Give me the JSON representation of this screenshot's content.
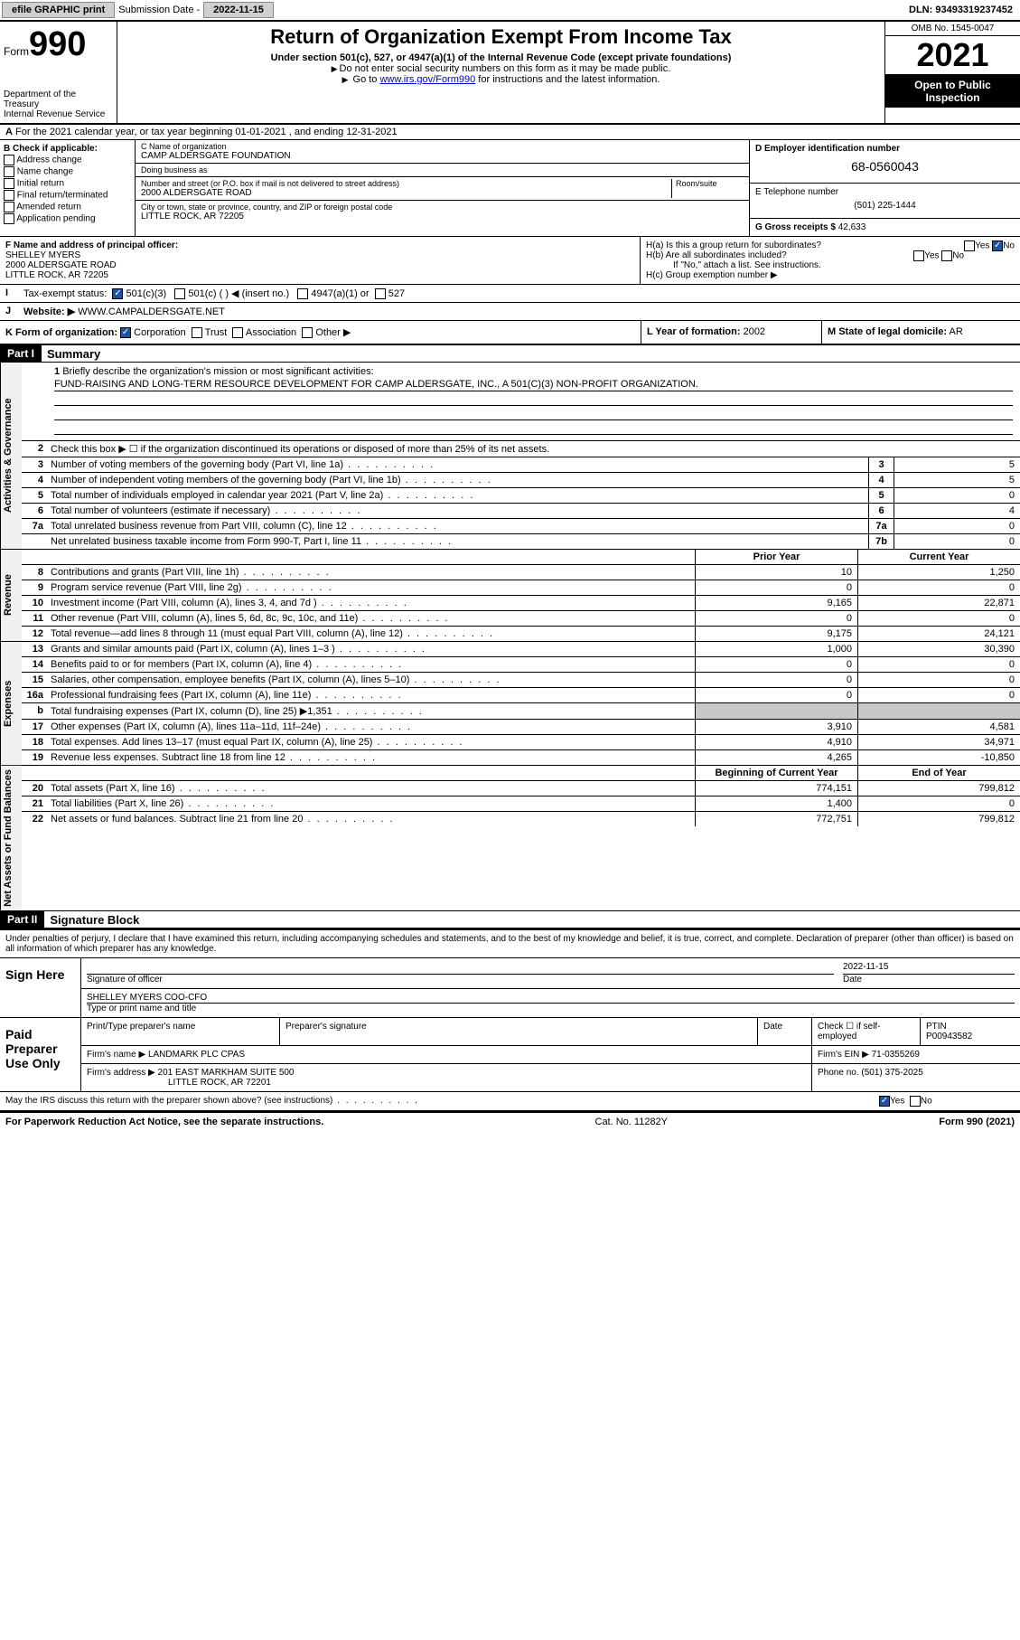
{
  "topbar": {
    "efile": "efile GRAPHIC print",
    "submission_label": "Submission Date -",
    "submission_date": "2022-11-15",
    "dln_label": "DLN:",
    "dln": "93493319237452"
  },
  "header": {
    "form_prefix": "Form",
    "form_number": "990",
    "dept1": "Department of the Treasury",
    "dept2": "Internal Revenue Service",
    "title": "Return of Organization Exempt From Income Tax",
    "subtitle": "Under section 501(c), 527, or 4947(a)(1) of the Internal Revenue Code (except private foundations)",
    "note1": "Do not enter social security numbers on this form as it may be made public.",
    "note2_pre": "Go to ",
    "note2_link": "www.irs.gov/Form990",
    "note2_post": " for instructions and the latest information.",
    "omb": "OMB No. 1545-0047",
    "year": "2021",
    "open": "Open to Public Inspection"
  },
  "rowA": {
    "text": "For the 2021 calendar year, or tax year beginning 01-01-2021   , and ending 12-31-2021"
  },
  "sectionB": {
    "title": "B Check if applicable:",
    "opts": [
      "Address change",
      "Name change",
      "Initial return",
      "Final return/terminated",
      "Amended return",
      "Application pending"
    ]
  },
  "sectionC": {
    "name_label": "C Name of organization",
    "name": "CAMP ALDERSGATE FOUNDATION",
    "dba_label": "Doing business as",
    "dba": "",
    "addr_label": "Number and street (or P.O. box if mail is not delivered to street address)",
    "room_label": "Room/suite",
    "addr": "2000 ALDERSGATE ROAD",
    "city_label": "City or town, state or province, country, and ZIP or foreign postal code",
    "city": "LITTLE ROCK, AR  72205"
  },
  "sectionD": {
    "label": "D Employer identification number",
    "ein": "68-0560043"
  },
  "sectionE": {
    "label": "E Telephone number",
    "phone": "(501) 225-1444"
  },
  "sectionG": {
    "label": "G Gross receipts $",
    "amount": "42,633"
  },
  "sectionF": {
    "label": "F Name and address of principal officer:",
    "name": "SHELLEY MYERS",
    "addr1": "2000 ALDERSGATE ROAD",
    "addr2": "LITTLE ROCK, AR  72205"
  },
  "sectionH": {
    "ha": "H(a)  Is this a group return for subordinates?",
    "ha_yes": "Yes",
    "ha_no": "No",
    "hb": "H(b)  Are all subordinates included?",
    "hb_note": "If \"No,\" attach a list. See instructions.",
    "hc": "H(c)  Group exemption number ▶"
  },
  "sectionI": {
    "label": "Tax-exempt status:",
    "o1": "501(c)(3)",
    "o2": "501(c) (  ) ◀ (insert no.)",
    "o3": "4947(a)(1) or",
    "o4": "527"
  },
  "sectionJ": {
    "label": "Website: ▶",
    "value": "WWW.CAMPALDERSGATE.NET"
  },
  "sectionK": {
    "label": "K Form of organization:",
    "o1": "Corporation",
    "o2": "Trust",
    "o3": "Association",
    "o4": "Other ▶"
  },
  "sectionL": {
    "label": "L Year of formation:",
    "value": "2002"
  },
  "sectionM": {
    "label": "M State of legal domicile:",
    "value": "AR"
  },
  "part1": {
    "hdr": "Part I",
    "title": "Summary",
    "vtab_gov": "Activities & Governance",
    "vtab_rev": "Revenue",
    "vtab_exp": "Expenses",
    "vtab_net": "Net Assets or Fund Balances",
    "line1": "Briefly describe the organization's mission or most significant activities:",
    "mission": "FUND-RAISING AND LONG-TERM RESOURCE DEVELOPMENT FOR CAMP ALDERSGATE, INC., A 501(C)(3) NON-PROFIT ORGANIZATION.",
    "line2": "Check this box ▶ ☐  if the organization discontinued its operations or disposed of more than 25% of its net assets.",
    "prior_year": "Prior Year",
    "current_year": "Current Year",
    "beg_year": "Beginning of Current Year",
    "end_year": "End of Year",
    "rows_gov": [
      {
        "n": "3",
        "d": "Number of voting members of the governing body (Part VI, line 1a)",
        "box": "3",
        "v": "5"
      },
      {
        "n": "4",
        "d": "Number of independent voting members of the governing body (Part VI, line 1b)",
        "box": "4",
        "v": "5"
      },
      {
        "n": "5",
        "d": "Total number of individuals employed in calendar year 2021 (Part V, line 2a)",
        "box": "5",
        "v": "0"
      },
      {
        "n": "6",
        "d": "Total number of volunteers (estimate if necessary)",
        "box": "6",
        "v": "4"
      },
      {
        "n": "7a",
        "d": "Total unrelated business revenue from Part VIII, column (C), line 12",
        "box": "7a",
        "v": "0"
      },
      {
        "n": "",
        "d": "Net unrelated business taxable income from Form 990-T, Part I, line 11",
        "box": "7b",
        "v": "0"
      }
    ],
    "rows_rev": [
      {
        "n": "8",
        "d": "Contributions and grants (Part VIII, line 1h)",
        "p": "10",
        "c": "1,250"
      },
      {
        "n": "9",
        "d": "Program service revenue (Part VIII, line 2g)",
        "p": "0",
        "c": "0"
      },
      {
        "n": "10",
        "d": "Investment income (Part VIII, column (A), lines 3, 4, and 7d )",
        "p": "9,165",
        "c": "22,871"
      },
      {
        "n": "11",
        "d": "Other revenue (Part VIII, column (A), lines 5, 6d, 8c, 9c, 10c, and 11e)",
        "p": "0",
        "c": "0"
      },
      {
        "n": "12",
        "d": "Total revenue—add lines 8 through 11 (must equal Part VIII, column (A), line 12)",
        "p": "9,175",
        "c": "24,121"
      }
    ],
    "rows_exp": [
      {
        "n": "13",
        "d": "Grants and similar amounts paid (Part IX, column (A), lines 1–3 )",
        "p": "1,000",
        "c": "30,390"
      },
      {
        "n": "14",
        "d": "Benefits paid to or for members (Part IX, column (A), line 4)",
        "p": "0",
        "c": "0"
      },
      {
        "n": "15",
        "d": "Salaries, other compensation, employee benefits (Part IX, column (A), lines 5–10)",
        "p": "0",
        "c": "0"
      },
      {
        "n": "16a",
        "d": "Professional fundraising fees (Part IX, column (A), line 11e)",
        "p": "0",
        "c": "0"
      },
      {
        "n": "b",
        "d": "Total fundraising expenses (Part IX, column (D), line 25) ▶1,351",
        "p": "",
        "c": "",
        "shade": true
      },
      {
        "n": "17",
        "d": "Other expenses (Part IX, column (A), lines 11a–11d, 11f–24e)",
        "p": "3,910",
        "c": "4,581"
      },
      {
        "n": "18",
        "d": "Total expenses. Add lines 13–17 (must equal Part IX, column (A), line 25)",
        "p": "4,910",
        "c": "34,971"
      },
      {
        "n": "19",
        "d": "Revenue less expenses. Subtract line 18 from line 12",
        "p": "4,265",
        "c": "-10,850"
      }
    ],
    "rows_net": [
      {
        "n": "20",
        "d": "Total assets (Part X, line 16)",
        "p": "774,151",
        "c": "799,812"
      },
      {
        "n": "21",
        "d": "Total liabilities (Part X, line 26)",
        "p": "1,400",
        "c": "0"
      },
      {
        "n": "22",
        "d": "Net assets or fund balances. Subtract line 21 from line 20",
        "p": "772,751",
        "c": "799,812"
      }
    ]
  },
  "part2": {
    "hdr": "Part II",
    "title": "Signature Block",
    "declare": "Under penalties of perjury, I declare that I have examined this return, including accompanying schedules and statements, and to the best of my knowledge and belief, it is true, correct, and complete. Declaration of preparer (other than officer) is based on all information of which preparer has any knowledge.",
    "sign_here": "Sign Here",
    "sig_officer": "Signature of officer",
    "sig_date": "Date",
    "sig_date_val": "2022-11-15",
    "officer_name": "SHELLEY MYERS COO-CFO",
    "type_name": "Type or print name and title",
    "paid": "Paid Preparer Use Only",
    "prep_name_lbl": "Print/Type preparer's name",
    "prep_sig_lbl": "Preparer's signature",
    "prep_date_lbl": "Date",
    "prep_check": "Check ☐ if self-employed",
    "ptin_lbl": "PTIN",
    "ptin": "P00943582",
    "firm_name_lbl": "Firm's name    ▶",
    "firm_name": "LANDMARK PLC CPAS",
    "firm_ein_lbl": "Firm's EIN ▶",
    "firm_ein": "71-0355269",
    "firm_addr_lbl": "Firm's address ▶",
    "firm_addr1": "201 EAST MARKHAM SUITE 500",
    "firm_addr2": "LITTLE ROCK, AR  72201",
    "firm_phone_lbl": "Phone no.",
    "firm_phone": "(501) 375-2025",
    "may_irs": "May the IRS discuss this return with the preparer shown above? (see instructions)",
    "yes": "Yes",
    "no": "No"
  },
  "footer": {
    "left": "For Paperwork Reduction Act Notice, see the separate instructions.",
    "mid": "Cat. No. 11282Y",
    "right": "Form 990 (2021)"
  }
}
